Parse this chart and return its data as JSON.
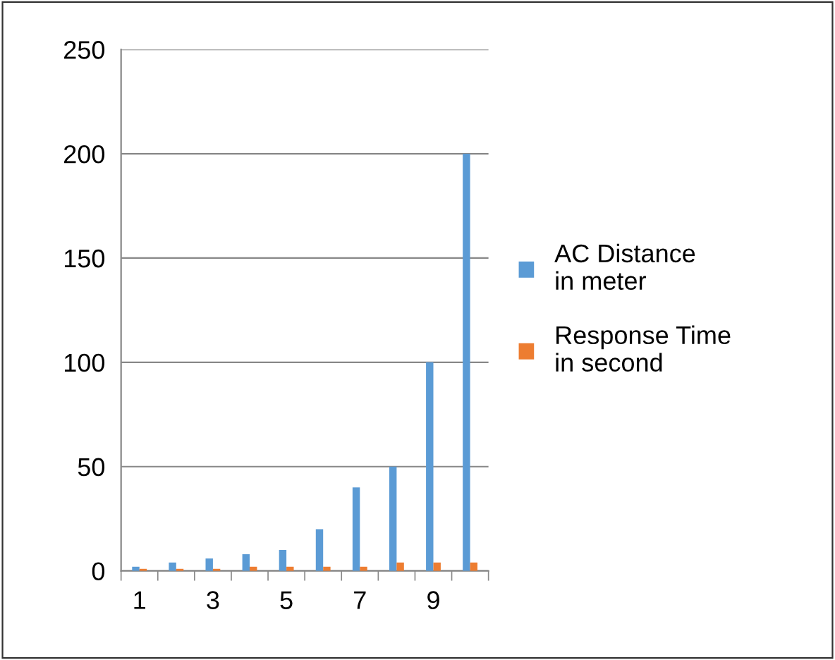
{
  "chart_data": {
    "type": "bar",
    "categories": [
      "1",
      null,
      "3",
      null,
      "5",
      null,
      "7",
      null,
      "9",
      null
    ],
    "series": [
      {
        "name": "AC Distance in meter",
        "color": "#5b9bd5",
        "values": [
          2,
          4,
          6,
          8,
          10,
          20,
          40,
          50,
          100,
          200
        ]
      },
      {
        "name": "Response Time in second",
        "color": "#ed7d31",
        "values": [
          1,
          1,
          1,
          2,
          2,
          2,
          2,
          4,
          4,
          4
        ]
      }
    ],
    "ylim": [
      0,
      250
    ],
    "yticks": [
      0,
      50,
      100,
      150,
      200,
      250
    ],
    "grid": "y",
    "legend": "right"
  }
}
